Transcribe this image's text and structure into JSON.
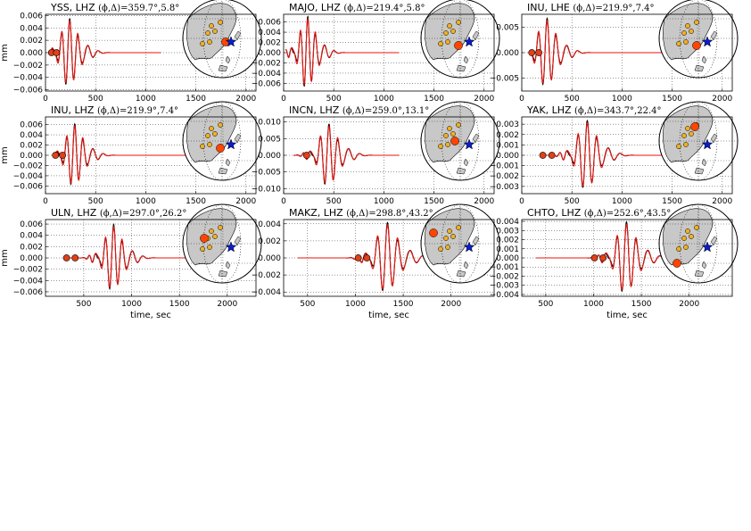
{
  "colors": {
    "observed": "#000000",
    "synthetic": "#e8150f",
    "marker": "#e0401a",
    "station_big": "#ff4500",
    "station_small": "#f0b020",
    "event_star": "#0a1ec8",
    "land": "#c8c8c8",
    "ocean": "#ffffff"
  },
  "figure": {
    "xlabel": "time, sec",
    "ylabel": "mm"
  },
  "chart_data": [
    {
      "type": "line",
      "title": "YSS, LHZ",
      "angles": "(ϕ,Δ)=359.7°,5.8°",
      "xlim": [
        0,
        2100
      ],
      "ylim": [
        -0.0062,
        0.0062
      ],
      "xticks": [
        "0",
        "500",
        "1000",
        "1500",
        "2000"
      ],
      "yticks": [
        "0.006",
        "0.004",
        "0.002",
        "0.000",
        "−0.002",
        "−0.004",
        "−0.006"
      ],
      "ytick_values": [
        0.006,
        0.004,
        0.002,
        0,
        -0.002,
        -0.004,
        -0.006
      ],
      "xtick_values": [
        0,
        500,
        1000,
        1500,
        2000
      ],
      "window": [
        60,
        1150
      ],
      "arrival": 230,
      "period": 65,
      "amp": 0.0056,
      "markers": [
        60,
        110
      ],
      "station": "big-east-coast"
    },
    {
      "type": "line",
      "title": "MAJO, LHZ",
      "angles": "(ϕ,Δ)=219.4°,5.8°",
      "xlim": [
        0,
        2100
      ],
      "ylim": [
        -0.0075,
        0.0075
      ],
      "xticks": [
        "0",
        "500",
        "1000",
        "1500",
        "2000"
      ],
      "yticks": [
        "0.006",
        "0.004",
        "0.002",
        "0.000",
        "−0.002",
        "−0.004",
        "−0.006"
      ],
      "ytick_values": [
        0.006,
        0.004,
        0.002,
        0,
        -0.002,
        -0.004,
        -0.006
      ],
      "xtick_values": [
        0,
        500,
        1000,
        1500,
        2000
      ],
      "window": [
        20,
        1150
      ],
      "arrival": 230,
      "period": 60,
      "amp": 0.0072,
      "markers": [],
      "station": "big-japan"
    },
    {
      "type": "line",
      "title": "INU, LHE",
      "angles": "(ϕ,Δ)=219.9°,7.4°",
      "xlim": [
        0,
        2100
      ],
      "ylim": [
        -0.0075,
        0.0075
      ],
      "xticks": [
        "0",
        "500",
        "1000",
        "1500",
        "2000"
      ],
      "yticks": [
        "0.005",
        "0.000",
        "−0.005"
      ],
      "ytick_values": [
        0.005,
        0,
        -0.005
      ],
      "xtick_values": [
        0,
        500,
        1000,
        1500,
        2000
      ],
      "window": [
        100,
        1450
      ],
      "arrival": 240,
      "period": 70,
      "amp": 0.0068,
      "markers": [
        100,
        170
      ],
      "station": "big-japan"
    },
    {
      "type": "line",
      "title": "INU, LHZ",
      "angles": "(ϕ,Δ)=219.9°,7.4°",
      "xlim": [
        0,
        2100
      ],
      "ylim": [
        -0.0075,
        0.0075
      ],
      "xticks": [
        "0",
        "500",
        "1000",
        "1500",
        "2000"
      ],
      "yticks": [
        "0.006",
        "0.004",
        "0.002",
        "0.000",
        "−0.002",
        "−0.004",
        "−0.006"
      ],
      "ytick_values": [
        0.006,
        0.004,
        0.002,
        0,
        -0.002,
        -0.004,
        -0.006
      ],
      "xtick_values": [
        0,
        500,
        1000,
        1500,
        2000
      ],
      "window": [
        100,
        1450
      ],
      "arrival": 280,
      "period": 65,
      "amp": 0.0062,
      "markers": [
        100,
        170
      ],
      "station": "big-japan"
    },
    {
      "type": "line",
      "title": "INCN, LHZ",
      "angles": "(ϕ,Δ)=259.0°,13.1°",
      "xlim": [
        0,
        2100
      ],
      "ylim": [
        -0.0115,
        0.0115
      ],
      "xticks": [
        "0",
        "500",
        "1000",
        "1500",
        "2000"
      ],
      "yticks": [
        "0.010",
        "0.005",
        "0.000",
        "−0.005",
        "−0.010"
      ],
      "ytick_values": [
        0.01,
        0.005,
        0,
        -0.005,
        -0.01
      ],
      "xtick_values": [
        0,
        500,
        1000,
        1500,
        2000
      ],
      "window": [
        100,
        1150
      ],
      "arrival": 440,
      "period": 70,
      "amp": 0.0095,
      "markers": [
        230
      ],
      "station": "big-korea"
    },
    {
      "type": "line",
      "title": "YAK, LHZ",
      "angles": "(ϕ,Δ)=343.7°,22.4°",
      "xlim": [
        0,
        2100
      ],
      "ylim": [
        -0.0037,
        0.0037
      ],
      "xticks": [
        "0",
        "500",
        "1000",
        "1500",
        "2000"
      ],
      "yticks": [
        "0.003",
        "0.002",
        "0.001",
        "0.000",
        "−0.001",
        "−0.002",
        "−0.003"
      ],
      "ytick_values": [
        0.003,
        0.002,
        0.001,
        0,
        -0.001,
        -0.002,
        -0.003
      ],
      "xtick_values": [
        0,
        500,
        1000,
        1500,
        2000
      ],
      "window": [
        200,
        1600
      ],
      "arrival": 640,
      "period": 75,
      "amp": 0.0034,
      "markers": [
        210,
        300
      ],
      "station": "big-north"
    },
    {
      "type": "line",
      "title": "ULN, LHZ",
      "angles": "(ϕ,Δ)=297.0°,26.2°",
      "xlim": [
        100,
        2300
      ],
      "ylim": [
        -0.0068,
        0.0068
      ],
      "xticks": [
        "500",
        "1000",
        "1500",
        "2000"
      ],
      "yticks": [
        "0.006",
        "0.004",
        "0.002",
        "0.000",
        "−0.002",
        "−0.004",
        "−0.006"
      ],
      "ytick_values": [
        0.006,
        0.004,
        0.002,
        0,
        -0.002,
        -0.004,
        -0.006
      ],
      "xtick_values": [
        500,
        1000,
        1500,
        2000
      ],
      "window": [
        300,
        1700
      ],
      "arrival": 800,
      "period": 70,
      "amp": 0.006,
      "markers": [
        320,
        410
      ],
      "station": "big-mongolia"
    },
    {
      "type": "line",
      "title": "MAKZ, LHZ",
      "angles": "(ϕ,Δ)=298.8°,43.2°",
      "xlim": [
        250,
        2450
      ],
      "ylim": [
        -0.0045,
        0.0045
      ],
      "xticks": [
        "500",
        "1000",
        "1500",
        "2000"
      ],
      "yticks": [
        "0.004",
        "0.002",
        "0.000",
        "−0.002",
        "−0.004"
      ],
      "ytick_values": [
        0.004,
        0.002,
        0,
        -0.002,
        -0.004
      ],
      "xtick_values": [
        500,
        1000,
        1500,
        2000
      ],
      "window": [
        400,
        2200
      ],
      "arrival": 1320,
      "period": 85,
      "amp": 0.0042,
      "markers": [
        1030,
        1120
      ],
      "station": "big-central-asia"
    },
    {
      "type": "line",
      "title": "CHTO, LHZ",
      "angles": "(ϕ,Δ)=252.6°,43.5°",
      "xlim": [
        250,
        2450
      ],
      "ylim": [
        -0.0042,
        0.0042
      ],
      "xticks": [
        "500",
        "1000",
        "1500",
        "2000"
      ],
      "yticks": [
        "0.004",
        "0.003",
        "0.002",
        "0.001",
        "0.000",
        "−0.001",
        "−0.002",
        "−0.003",
        "−0.004"
      ],
      "ytick_values": [
        0.004,
        0.003,
        0.002,
        0.001,
        0,
        -0.001,
        -0.002,
        -0.003,
        -0.004
      ],
      "xtick_values": [
        500,
        1000,
        1500,
        2000
      ],
      "window": [
        400,
        2200
      ],
      "arrival": 1330,
      "period": 80,
      "amp": 0.004,
      "markers": [
        1010,
        1100
      ],
      "station": "big-thailand"
    }
  ]
}
